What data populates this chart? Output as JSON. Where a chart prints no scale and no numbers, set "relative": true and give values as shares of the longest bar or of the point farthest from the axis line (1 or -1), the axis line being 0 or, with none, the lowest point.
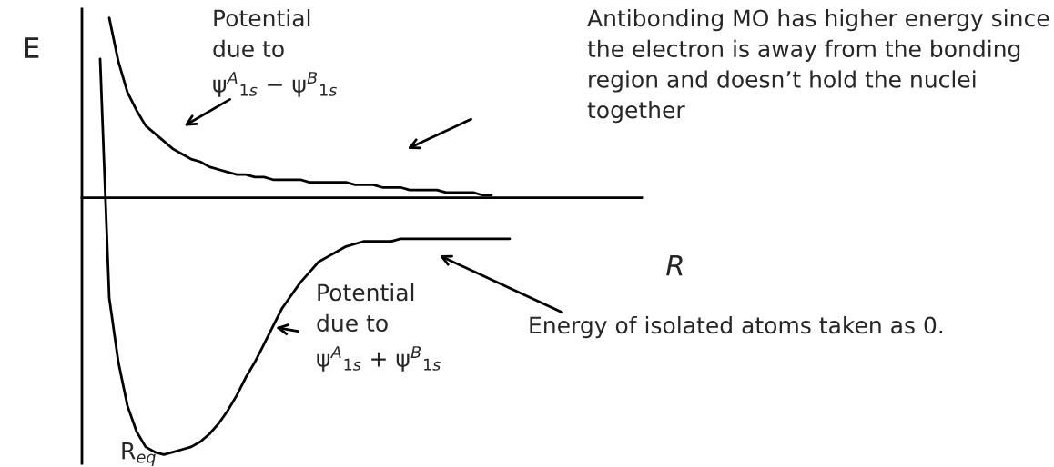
{
  "chart_data": {
    "type": "line",
    "relative": true,
    "xlabel": "R",
    "ylabel": "E",
    "legend": false,
    "marker": "none",
    "line_style": "solid",
    "categories": [
      null,
      null,
      null,
      null,
      null,
      null,
      null,
      null,
      null,
      null,
      null,
      null,
      null,
      null,
      null,
      null,
      null,
      null,
      null,
      null,
      null,
      null,
      null,
      null,
      null,
      null,
      null,
      null,
      null,
      null,
      null,
      null,
      null,
      null,
      null,
      null,
      null,
      null,
      null,
      null,
      null,
      null,
      null,
      null,
      null,
      null,
      null,
      null,
      null,
      null,
      null,
      null,
      null,
      null,
      null,
      null,
      null,
      null,
      null,
      null,
      null
    ],
    "series": [
      {
        "color": "#000000",
        "values": [
          null,
          null,
          0.7,
          0.53,
          0.41,
          0.34,
          0.28,
          0.25,
          0.22,
          0.19,
          0.17,
          0.15,
          0.14,
          0.12,
          0.11,
          0.1,
          0.09,
          0.09,
          0.08,
          0.08,
          0.07,
          0.07,
          0.07,
          0.07,
          0.06,
          0.06,
          0.06,
          0.06,
          0.06,
          0.05,
          0.05,
          0.05,
          0.04,
          0.04,
          0.04,
          0.03,
          0.03,
          0.03,
          0.03,
          0.02,
          0.02,
          0.02,
          0.02,
          0.01,
          0.01,
          null,
          null,
          null,
          null,
          null,
          null,
          null,
          null,
          null,
          null,
          null,
          null,
          null,
          null,
          null,
          null
        ]
      },
      {
        "color": "#000000",
        "values": [
          null,
          0.54,
          -0.39,
          -0.64,
          -0.81,
          -0.91,
          -0.97,
          -0.99,
          -1,
          -0.99,
          -0.98,
          -0.97,
          -0.95,
          -0.92,
          -0.88,
          -0.83,
          -0.77,
          -0.7,
          -0.64,
          -0.57,
          -0.5,
          -0.43,
          -0.38,
          -0.33,
          -0.29,
          -0.25,
          -0.23,
          -0.21,
          -0.19,
          -0.18,
          -0.17,
          -0.17,
          -0.17,
          -0.17,
          -0.16,
          -0.16,
          -0.16,
          -0.16,
          -0.16,
          -0.16,
          -0.16,
          -0.16,
          -0.16,
          -0.16,
          -0.16,
          -0.16,
          -0.16,
          null,
          null,
          null,
          null,
          null,
          null,
          null,
          null,
          null,
          null,
          null,
          null,
          null,
          null
        ]
      }
    ],
    "annotations": [
      "Potential\ndue to\nψ$^{A}$$_{1s}$ − ψ$^{B}$$_{1s}$",
      "Antibonding MO has higher energy since\nthe electron is away from the bonding\nregion and doesn’t hold the nuclei\ntogether",
      "Potential\ndue to\nψ$^{A}$$_{1s}$ + ψ$^{B}$$_{1s}$",
      "Energy of isolated atoms taken as 0.",
      "R$_{eq}$"
    ]
  }
}
